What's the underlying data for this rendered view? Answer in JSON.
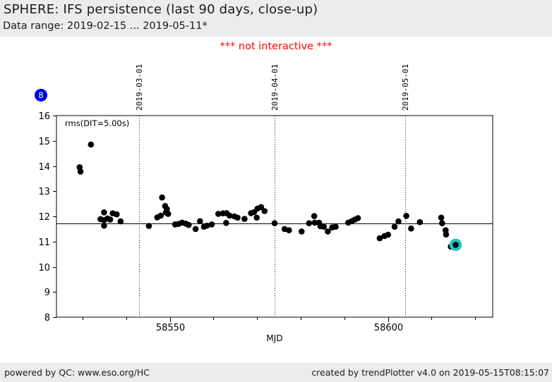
{
  "header": {
    "title": "SPHERE: IFS persistence (last 90 days, close-up)",
    "subtitle": "Data range: 2019-02-15 ... 2019-05-11*"
  },
  "note": {
    "text": "*** not interactive ***",
    "color": "#ff0000"
  },
  "badge": {
    "label": "8",
    "color": "#0202dd"
  },
  "footer": {
    "left": "powered by QC: www.eso.org/HC",
    "right": "created by trendPlotter v4.0 on 2019-05-15T08:15:07"
  },
  "chart_data": {
    "type": "scatter",
    "legend_label": "rms(DIT=5.00s)",
    "xlabel": "MJD",
    "ylabel": "",
    "xlim": [
      58524,
      58624
    ],
    "ylim": [
      8,
      16
    ],
    "y_ticks": [
      8,
      9,
      10,
      11,
      12,
      13,
      14,
      15,
      16
    ],
    "x_minor_ticks": [
      58530,
      58540,
      58550,
      58560,
      58570,
      58580,
      58590,
      58600,
      58610,
      58620
    ],
    "x_major_ticks": [
      {
        "mjd": 58550,
        "label": "58550"
      },
      {
        "mjd": 58600,
        "label": "58600"
      }
    ],
    "date_gridlines": [
      {
        "mjd": 58543,
        "label": "2019-03-01"
      },
      {
        "mjd": 58574,
        "label": "2019-04-01"
      },
      {
        "mjd": 58604,
        "label": "2019-05-01"
      }
    ],
    "mean_line_value": 11.73,
    "marker_color": "#000000",
    "highlight_color": "#25c7bd",
    "grid": "dotted-vertical-dates-only",
    "legend_position": "top-left-inside",
    "points": [
      [
        58529.3,
        13.95
      ],
      [
        58529.5,
        13.78
      ],
      [
        58531.9,
        14.85
      ],
      [
        58534.1,
        11.89
      ],
      [
        58534.9,
        12.16
      ],
      [
        58534.9,
        11.85
      ],
      [
        58534.9,
        11.63
      ],
      [
        58535.7,
        11.92
      ],
      [
        58536.3,
        11.87
      ],
      [
        58536.9,
        12.12
      ],
      [
        58537.8,
        12.08
      ],
      [
        58538.7,
        11.8
      ],
      [
        58545.2,
        11.62
      ],
      [
        58547.1,
        11.96
      ],
      [
        58547.9,
        12.03
      ],
      [
        58548.2,
        12.75
      ],
      [
        58548.9,
        12.41
      ],
      [
        58549.1,
        12.15
      ],
      [
        58549.3,
        12.29
      ],
      [
        58549.6,
        12.1
      ],
      [
        58551.2,
        11.68
      ],
      [
        58552.0,
        11.7
      ],
      [
        58552.8,
        11.75
      ],
      [
        58553.7,
        11.71
      ],
      [
        58554.3,
        11.66
      ],
      [
        58555.9,
        11.5
      ],
      [
        58556.9,
        11.81
      ],
      [
        58557.8,
        11.59
      ],
      [
        58558.5,
        11.63
      ],
      [
        58559.6,
        11.68
      ],
      [
        58561.1,
        12.1
      ],
      [
        58562.2,
        12.12
      ],
      [
        58562.9,
        11.74
      ],
      [
        58563.0,
        12.13
      ],
      [
        58563.7,
        12.03
      ],
      [
        58564.8,
        12.0
      ],
      [
        58565.5,
        11.95
      ],
      [
        58567.1,
        11.9
      ],
      [
        58568.6,
        12.13
      ],
      [
        58569.3,
        12.17
      ],
      [
        58569.9,
        11.95
      ],
      [
        58570.1,
        12.31
      ],
      [
        58570.9,
        12.37
      ],
      [
        58571.7,
        12.21
      ],
      [
        58574.0,
        11.73
      ],
      [
        58576.3,
        11.5
      ],
      [
        58577.3,
        11.45
      ],
      [
        58580.2,
        11.4
      ],
      [
        58581.9,
        11.73
      ],
      [
        58583.1,
        12.01
      ],
      [
        58583.2,
        11.75
      ],
      [
        58584.2,
        11.75
      ],
      [
        58584.5,
        11.61
      ],
      [
        58585.3,
        11.59
      ],
      [
        58586.2,
        11.4
      ],
      [
        58587.2,
        11.56
      ],
      [
        58588.0,
        11.59
      ],
      [
        58590.9,
        11.75
      ],
      [
        58591.7,
        11.81
      ],
      [
        58592.4,
        11.87
      ],
      [
        58593.1,
        11.93
      ],
      [
        58598.1,
        11.13
      ],
      [
        58599.2,
        11.22
      ],
      [
        58600.0,
        11.27
      ],
      [
        58601.5,
        11.59
      ],
      [
        58602.4,
        11.8
      ],
      [
        58604.2,
        12.02
      ],
      [
        58605.3,
        11.52
      ],
      [
        58607.3,
        11.77
      ],
      [
        58612.2,
        11.95
      ],
      [
        58612.4,
        11.73
      ],
      [
        58613.2,
        11.45
      ],
      [
        58613.3,
        11.28
      ],
      [
        58614.4,
        10.8
      ]
    ],
    "highlighted_point": [
      58615.5,
      10.87
    ]
  }
}
